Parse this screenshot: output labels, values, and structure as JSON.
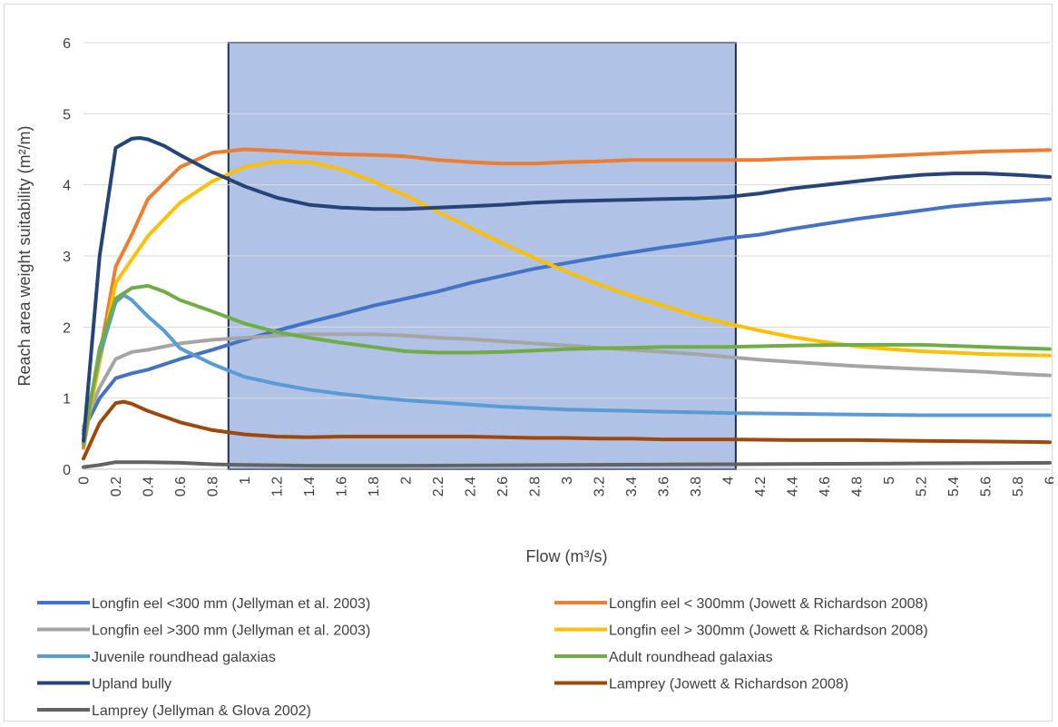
{
  "chart_data": {
    "type": "line",
    "title": "",
    "xlabel": "Flow (m³/s)",
    "ylabel": "Reach area weight suitability (m²/m)",
    "xlim": [
      0,
      6
    ],
    "ylim": [
      0,
      6
    ],
    "x_ticks": [
      "0",
      "0.2",
      "0.4",
      "0.6",
      "0.8",
      "1",
      "1.2",
      "1.4",
      "1.6",
      "1.8",
      "2",
      "2.2",
      "2.4",
      "2.6",
      "2.8",
      "3",
      "3.2",
      "3.4",
      "3.6",
      "3.8",
      "4",
      "4.2",
      "4.4",
      "4.6",
      "4.8",
      "5",
      "5.2",
      "5.4",
      "5.6",
      "5.8",
      "6"
    ],
    "y_ticks": [
      "0",
      "1",
      "2",
      "3",
      "4",
      "5",
      "6"
    ],
    "grid": "horizontal",
    "legend_position": "bottom",
    "highlight_region": {
      "x_start": 0.9,
      "x_end": 4.05,
      "y_start": 0,
      "y_end": 6,
      "color": "#8faadc"
    },
    "series": [
      {
        "name": "Longfin eel <300 mm (Jellyman et al. 2003)",
        "color": "#4472c4",
        "points": [
          [
            0,
            0.55
          ],
          [
            0.1,
            1.0
          ],
          [
            0.2,
            1.28
          ],
          [
            0.3,
            1.35
          ],
          [
            0.4,
            1.4
          ],
          [
            0.6,
            1.55
          ],
          [
            0.8,
            1.68
          ],
          [
            1,
            1.82
          ],
          [
            1.2,
            1.95
          ],
          [
            1.4,
            2.07
          ],
          [
            1.6,
            2.18
          ],
          [
            1.8,
            2.3
          ],
          [
            2,
            2.4
          ],
          [
            2.2,
            2.5
          ],
          [
            2.4,
            2.62
          ],
          [
            2.6,
            2.72
          ],
          [
            2.8,
            2.82
          ],
          [
            3,
            2.9
          ],
          [
            3.2,
            2.98
          ],
          [
            3.4,
            3.05
          ],
          [
            3.6,
            3.12
          ],
          [
            3.8,
            3.18
          ],
          [
            4,
            3.25
          ],
          [
            4.2,
            3.3
          ],
          [
            4.4,
            3.38
          ],
          [
            4.6,
            3.45
          ],
          [
            4.8,
            3.52
          ],
          [
            5,
            3.58
          ],
          [
            5.2,
            3.64
          ],
          [
            5.4,
            3.7
          ],
          [
            5.6,
            3.74
          ],
          [
            5.8,
            3.77
          ],
          [
            6,
            3.8
          ]
        ]
      },
      {
        "name": "Longfin eel < 300mm (Jowett & Richardson 2008)",
        "color": "#ed7d31",
        "points": [
          [
            0,
            0.3
          ],
          [
            0.1,
            1.6
          ],
          [
            0.2,
            2.85
          ],
          [
            0.3,
            3.3
          ],
          [
            0.4,
            3.8
          ],
          [
            0.6,
            4.25
          ],
          [
            0.8,
            4.45
          ],
          [
            1,
            4.5
          ],
          [
            1.2,
            4.48
          ],
          [
            1.4,
            4.45
          ],
          [
            1.6,
            4.43
          ],
          [
            1.8,
            4.42
          ],
          [
            2,
            4.4
          ],
          [
            2.2,
            4.35
          ],
          [
            2.4,
            4.32
          ],
          [
            2.6,
            4.3
          ],
          [
            2.8,
            4.3
          ],
          [
            3,
            4.32
          ],
          [
            3.2,
            4.33
          ],
          [
            3.4,
            4.35
          ],
          [
            3.6,
            4.35
          ],
          [
            3.8,
            4.35
          ],
          [
            4,
            4.35
          ],
          [
            4.2,
            4.35
          ],
          [
            4.4,
            4.37
          ],
          [
            4.6,
            4.38
          ],
          [
            4.8,
            4.39
          ],
          [
            5,
            4.41
          ],
          [
            5.2,
            4.43
          ],
          [
            5.4,
            4.45
          ],
          [
            5.6,
            4.47
          ],
          [
            5.8,
            4.48
          ],
          [
            6,
            4.49
          ]
        ]
      },
      {
        "name": "Longfin eel >300 mm (Jellyman et al. 2003)",
        "color": "#a5a5a5",
        "points": [
          [
            0,
            0.6
          ],
          [
            0.1,
            1.15
          ],
          [
            0.2,
            1.55
          ],
          [
            0.3,
            1.65
          ],
          [
            0.4,
            1.68
          ],
          [
            0.6,
            1.77
          ],
          [
            0.8,
            1.82
          ],
          [
            1,
            1.85
          ],
          [
            1.2,
            1.88
          ],
          [
            1.4,
            1.9
          ],
          [
            1.6,
            1.9
          ],
          [
            1.8,
            1.9
          ],
          [
            2,
            1.88
          ],
          [
            2.2,
            1.85
          ],
          [
            2.4,
            1.83
          ],
          [
            2.6,
            1.8
          ],
          [
            2.8,
            1.77
          ],
          [
            3,
            1.74
          ],
          [
            3.2,
            1.71
          ],
          [
            3.4,
            1.68
          ],
          [
            3.6,
            1.65
          ],
          [
            3.8,
            1.62
          ],
          [
            4,
            1.58
          ],
          [
            4.2,
            1.54
          ],
          [
            4.4,
            1.51
          ],
          [
            4.6,
            1.48
          ],
          [
            4.8,
            1.45
          ],
          [
            5,
            1.43
          ],
          [
            5.2,
            1.41
          ],
          [
            5.4,
            1.39
          ],
          [
            5.6,
            1.37
          ],
          [
            5.8,
            1.34
          ],
          [
            6,
            1.32
          ]
        ]
      },
      {
        "name": "Longfin eel > 300mm (Jowett & Richardson 2008)",
        "color": "#ffc000",
        "points": [
          [
            0,
            0.4
          ],
          [
            0.1,
            1.5
          ],
          [
            0.2,
            2.62
          ],
          [
            0.3,
            2.95
          ],
          [
            0.4,
            3.28
          ],
          [
            0.6,
            3.75
          ],
          [
            0.8,
            4.05
          ],
          [
            1,
            4.25
          ],
          [
            1.2,
            4.33
          ],
          [
            1.4,
            4.32
          ],
          [
            1.6,
            4.22
          ],
          [
            1.8,
            4.05
          ],
          [
            2,
            3.85
          ],
          [
            2.2,
            3.62
          ],
          [
            2.4,
            3.4
          ],
          [
            2.6,
            3.18
          ],
          [
            2.8,
            2.97
          ],
          [
            3,
            2.78
          ],
          [
            3.2,
            2.6
          ],
          [
            3.4,
            2.44
          ],
          [
            3.6,
            2.3
          ],
          [
            3.8,
            2.16
          ],
          [
            4,
            2.05
          ],
          [
            4.2,
            1.95
          ],
          [
            4.4,
            1.86
          ],
          [
            4.6,
            1.79
          ],
          [
            4.8,
            1.73
          ],
          [
            5,
            1.69
          ],
          [
            5.2,
            1.66
          ],
          [
            5.4,
            1.64
          ],
          [
            5.6,
            1.62
          ],
          [
            5.8,
            1.61
          ],
          [
            6,
            1.6
          ]
        ]
      },
      {
        "name": "Juvenile roundhead galaxias",
        "color": "#5b9bd5",
        "points": [
          [
            0,
            0.5
          ],
          [
            0.1,
            1.6
          ],
          [
            0.2,
            2.35
          ],
          [
            0.25,
            2.45
          ],
          [
            0.3,
            2.38
          ],
          [
            0.4,
            2.15
          ],
          [
            0.5,
            1.95
          ],
          [
            0.6,
            1.7
          ],
          [
            0.8,
            1.48
          ],
          [
            1,
            1.3
          ],
          [
            1.2,
            1.2
          ],
          [
            1.4,
            1.12
          ],
          [
            1.6,
            1.06
          ],
          [
            1.8,
            1.01
          ],
          [
            2,
            0.97
          ],
          [
            2.2,
            0.94
          ],
          [
            2.4,
            0.91
          ],
          [
            2.6,
            0.88
          ],
          [
            2.8,
            0.86
          ],
          [
            3,
            0.84
          ],
          [
            3.2,
            0.83
          ],
          [
            3.4,
            0.82
          ],
          [
            3.6,
            0.81
          ],
          [
            3.8,
            0.8
          ],
          [
            4,
            0.79
          ],
          [
            4.4,
            0.78
          ],
          [
            4.8,
            0.77
          ],
          [
            5.2,
            0.76
          ],
          [
            5.6,
            0.76
          ],
          [
            6,
            0.76
          ]
        ]
      },
      {
        "name": "Adult roundhead galaxias",
        "color": "#70ad47",
        "points": [
          [
            0,
            0.35
          ],
          [
            0.1,
            1.7
          ],
          [
            0.2,
            2.4
          ],
          [
            0.3,
            2.55
          ],
          [
            0.4,
            2.58
          ],
          [
            0.5,
            2.5
          ],
          [
            0.6,
            2.38
          ],
          [
            0.8,
            2.22
          ],
          [
            1,
            2.05
          ],
          [
            1.2,
            1.93
          ],
          [
            1.4,
            1.85
          ],
          [
            1.6,
            1.78
          ],
          [
            1.8,
            1.72
          ],
          [
            2,
            1.66
          ],
          [
            2.2,
            1.64
          ],
          [
            2.4,
            1.64
          ],
          [
            2.6,
            1.65
          ],
          [
            2.8,
            1.67
          ],
          [
            3,
            1.69
          ],
          [
            3.2,
            1.7
          ],
          [
            3.4,
            1.71
          ],
          [
            3.6,
            1.72
          ],
          [
            3.8,
            1.72
          ],
          [
            4,
            1.72
          ],
          [
            4.2,
            1.73
          ],
          [
            4.4,
            1.74
          ],
          [
            4.8,
            1.75
          ],
          [
            5.2,
            1.75
          ],
          [
            5.6,
            1.72
          ],
          [
            6,
            1.69
          ]
        ]
      },
      {
        "name": "Upland bully",
        "color": "#264478",
        "points": [
          [
            0,
            0.4
          ],
          [
            0.1,
            3.0
          ],
          [
            0.2,
            4.52
          ],
          [
            0.3,
            4.65
          ],
          [
            0.35,
            4.66
          ],
          [
            0.4,
            4.64
          ],
          [
            0.5,
            4.55
          ],
          [
            0.6,
            4.42
          ],
          [
            0.8,
            4.18
          ],
          [
            1,
            3.98
          ],
          [
            1.2,
            3.82
          ],
          [
            1.4,
            3.72
          ],
          [
            1.6,
            3.68
          ],
          [
            1.8,
            3.66
          ],
          [
            2,
            3.66
          ],
          [
            2.2,
            3.68
          ],
          [
            2.4,
            3.7
          ],
          [
            2.6,
            3.72
          ],
          [
            2.8,
            3.75
          ],
          [
            3,
            3.77
          ],
          [
            3.2,
            3.78
          ],
          [
            3.4,
            3.79
          ],
          [
            3.6,
            3.8
          ],
          [
            3.8,
            3.81
          ],
          [
            4,
            3.83
          ],
          [
            4.2,
            3.88
          ],
          [
            4.4,
            3.95
          ],
          [
            4.6,
            4.0
          ],
          [
            4.8,
            4.05
          ],
          [
            5,
            4.1
          ],
          [
            5.2,
            4.14
          ],
          [
            5.4,
            4.16
          ],
          [
            5.6,
            4.16
          ],
          [
            5.8,
            4.14
          ],
          [
            6,
            4.11
          ]
        ]
      },
      {
        "name": "Lamprey (Jowett & Richardson 2008)",
        "color": "#9e480e",
        "points": [
          [
            0,
            0.15
          ],
          [
            0.1,
            0.65
          ],
          [
            0.2,
            0.93
          ],
          [
            0.25,
            0.95
          ],
          [
            0.3,
            0.92
          ],
          [
            0.4,
            0.82
          ],
          [
            0.6,
            0.66
          ],
          [
            0.8,
            0.55
          ],
          [
            1,
            0.49
          ],
          [
            1.2,
            0.46
          ],
          [
            1.4,
            0.45
          ],
          [
            1.6,
            0.46
          ],
          [
            1.8,
            0.46
          ],
          [
            2,
            0.46
          ],
          [
            2.2,
            0.46
          ],
          [
            2.4,
            0.46
          ],
          [
            2.6,
            0.45
          ],
          [
            2.8,
            0.44
          ],
          [
            3,
            0.44
          ],
          [
            3.2,
            0.43
          ],
          [
            3.4,
            0.43
          ],
          [
            3.6,
            0.42
          ],
          [
            3.8,
            0.42
          ],
          [
            4,
            0.42
          ],
          [
            4.4,
            0.41
          ],
          [
            4.8,
            0.41
          ],
          [
            5.2,
            0.4
          ],
          [
            5.6,
            0.39
          ],
          [
            6,
            0.38
          ]
        ]
      },
      {
        "name": "Lamprey (Jellyman & Glova 2002)",
        "color": "#636363",
        "points": [
          [
            0,
            0.03
          ],
          [
            0.1,
            0.06
          ],
          [
            0.2,
            0.1
          ],
          [
            0.4,
            0.1
          ],
          [
            0.6,
            0.09
          ],
          [
            0.8,
            0.07
          ],
          [
            1,
            0.06
          ],
          [
            1.4,
            0.05
          ],
          [
            2,
            0.05
          ],
          [
            3,
            0.06
          ],
          [
            4,
            0.07
          ],
          [
            5,
            0.08
          ],
          [
            6,
            0.09
          ]
        ]
      }
    ]
  }
}
